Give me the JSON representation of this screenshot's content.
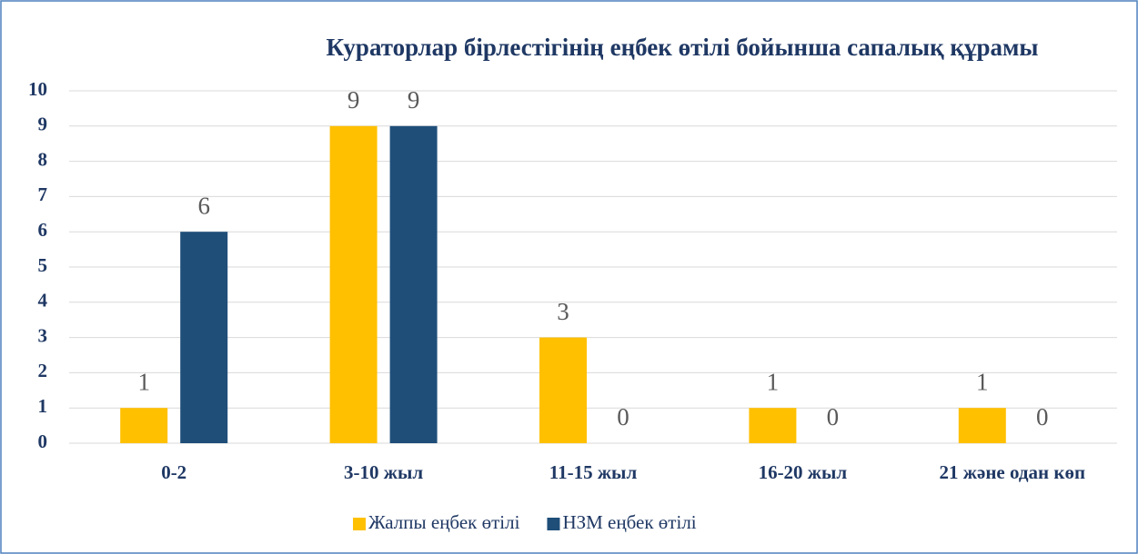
{
  "chart_data": {
    "type": "bar",
    "title": "Кураторлар бірлестігінің еңбек өтілі бойынша  сапалық құрамы",
    "categories": [
      "0-2",
      "3-10 жыл",
      "11-15 жыл",
      "16-20 жыл",
      "21 және одан көп"
    ],
    "series": [
      {
        "name": "Жалпы еңбек өтілі",
        "color": "#ffc000",
        "values": [
          1,
          9,
          3,
          1,
          1
        ]
      },
      {
        "name": "НЗМ еңбек өтілі",
        "color": "#1f4e79",
        "values": [
          6,
          9,
          0,
          0,
          0
        ]
      }
    ],
    "ylim": [
      0,
      10
    ],
    "yticks": [
      0,
      1,
      2,
      3,
      4,
      5,
      6,
      7,
      8,
      9,
      10
    ],
    "grid": true,
    "legend": "bottom"
  }
}
